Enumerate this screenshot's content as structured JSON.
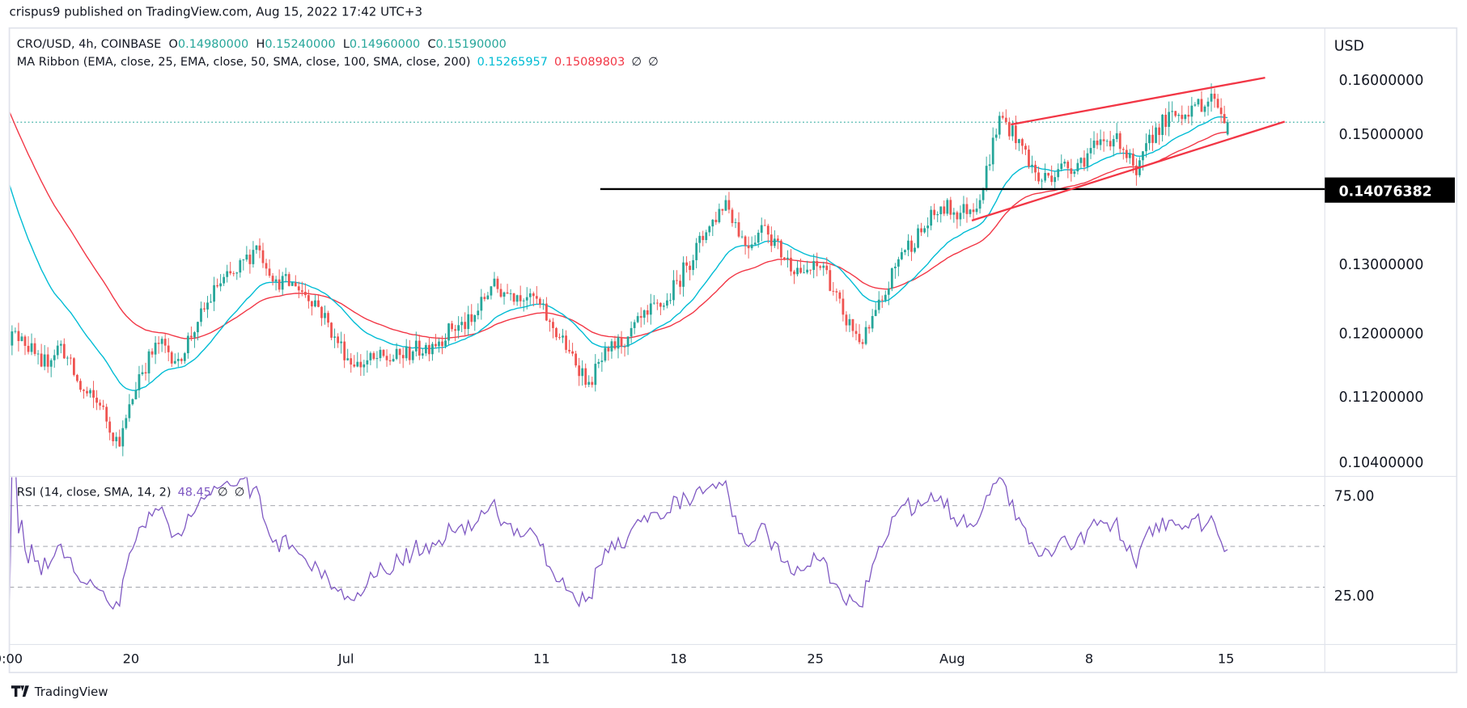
{
  "header": {
    "published": "crispus9 published on TradingView.com, Aug 15, 2022 17:42 UTC+3"
  },
  "legend": {
    "symbol": "CRO/USD, 4h, COINBASE",
    "o_label": "O",
    "o": "0.14980000",
    "h_label": "H",
    "h": "0.15240000",
    "l_label": "L",
    "l": "0.14960000",
    "c_label": "C",
    "c": "0.15190000",
    "ma_name": "MA Ribbon (EMA, close, 25, EMA, close, 50, SMA, close, 100, SMA, close, 200)",
    "ma_val1": "0.15265957",
    "ma_val2": "0.15089803",
    "ma_na1": "∅",
    "ma_na2": "∅",
    "rsi_name": "RSI (14, close, SMA, 14, 2)",
    "rsi_val": "48.45",
    "rsi_na1": "∅",
    "rsi_na2": "∅"
  },
  "footer": {
    "logo_text": "TradingView"
  },
  "colors": {
    "up": "#26a69a",
    "down": "#ef5350",
    "ema25": "#00bcd4",
    "ema50": "#f23645",
    "rsi": "#7e57c2",
    "channel": "#f23645",
    "support": "#000000",
    "last_price": "#26a69a"
  },
  "chart_data": [
    {
      "type": "candlestick",
      "title": "CRO/USD, 4h, COINBASE",
      "y_axis": {
        "unit": "USD",
        "scale": "log",
        "ticks": [
          "0.16000000",
          "0.15000000",
          "0.13000000",
          "0.12000000",
          "0.11200000",
          "0.10400000"
        ]
      },
      "x_axis": {
        "ticks": [
          {
            "label": "0:00",
            "date": "2022-06-14"
          },
          {
            "label": "20",
            "date": "2022-06-20"
          },
          {
            "label": "Jul",
            "date": "2022-07-01"
          },
          {
            "label": "11",
            "date": "2022-07-11"
          },
          {
            "label": "18",
            "date": "2022-07-18"
          },
          {
            "label": "25",
            "date": "2022-07-25"
          },
          {
            "label": "Aug",
            "date": "2022-08-01"
          },
          {
            "label": "8",
            "date": "2022-08-08"
          },
          {
            "label": "15",
            "date": "2022-08-15"
          }
        ]
      },
      "last_candle": {
        "open": 0.1498,
        "high": 0.1524,
        "low": 0.1496,
        "close": 0.1519
      },
      "daily_close": [
        [
          "2022-06-14",
          0.119
        ],
        [
          "2022-06-15",
          0.115
        ],
        [
          "2022-06-16",
          0.118
        ],
        [
          "2022-06-17",
          0.112
        ],
        [
          "2022-06-18",
          0.11
        ],
        [
          "2022-06-19",
          0.105
        ],
        [
          "2022-06-20",
          0.114
        ],
        [
          "2022-06-21",
          0.118
        ],
        [
          "2022-06-22",
          0.116
        ],
        [
          "2022-06-23",
          0.121
        ],
        [
          "2022-06-24",
          0.126
        ],
        [
          "2022-06-25",
          0.128
        ],
        [
          "2022-06-26",
          0.132
        ],
        [
          "2022-06-27",
          0.127
        ],
        [
          "2022-06-28",
          0.126
        ],
        [
          "2022-06-29",
          0.124
        ],
        [
          "2022-06-30",
          0.119
        ],
        [
          "2022-07-01",
          0.115
        ],
        [
          "2022-07-02",
          0.116
        ],
        [
          "2022-07-03",
          0.116
        ],
        [
          "2022-07-04",
          0.117
        ],
        [
          "2022-07-05",
          0.118
        ],
        [
          "2022-07-06",
          0.12
        ],
        [
          "2022-07-07",
          0.121
        ],
        [
          "2022-07-08",
          0.126
        ],
        [
          "2022-07-09",
          0.125
        ],
        [
          "2022-07-10",
          0.125
        ],
        [
          "2022-07-11",
          0.121
        ],
        [
          "2022-07-12",
          0.117
        ],
        [
          "2022-07-13",
          0.113
        ],
        [
          "2022-07-14",
          0.117
        ],
        [
          "2022-07-15",
          0.119
        ],
        [
          "2022-07-16",
          0.122
        ],
        [
          "2022-07-17",
          0.124
        ],
        [
          "2022-07-18",
          0.129
        ],
        [
          "2022-07-19",
          0.134
        ],
        [
          "2022-07-20",
          0.139
        ],
        [
          "2022-07-21",
          0.132
        ],
        [
          "2022-07-22",
          0.135
        ],
        [
          "2022-07-23",
          0.13
        ],
        [
          "2022-07-24",
          0.128
        ],
        [
          "2022-07-25",
          0.129
        ],
        [
          "2022-07-26",
          0.122
        ],
        [
          "2022-07-27",
          0.118
        ],
        [
          "2022-07-28",
          0.124
        ],
        [
          "2022-07-29",
          0.131
        ],
        [
          "2022-07-30",
          0.134
        ],
        [
          "2022-07-31",
          0.138
        ],
        [
          "2022-08-01",
          0.137
        ],
        [
          "2022-08-02",
          0.139
        ],
        [
          "2022-08-03",
          0.153
        ],
        [
          "2022-08-04",
          0.149
        ],
        [
          "2022-08-05",
          0.142
        ],
        [
          "2022-08-06",
          0.144
        ],
        [
          "2022-08-07",
          0.145
        ],
        [
          "2022-08-08",
          0.148
        ],
        [
          "2022-08-09",
          0.15
        ],
        [
          "2022-08-10",
          0.143
        ],
        [
          "2022-08-11",
          0.151
        ],
        [
          "2022-08-12",
          0.153
        ],
        [
          "2022-08-13",
          0.155
        ],
        [
          "2022-08-14",
          0.156
        ],
        [
          "2022-08-15",
          0.1519
        ]
      ],
      "ma_at_left_edge": {
        "ema25": 0.146,
        "ema50": 0.157
      },
      "support_line": {
        "value": "0.14076382",
        "from_date": "2022-07-14"
      },
      "channel": {
        "upper": [
          [
            "2022-08-04",
            0.1515
          ],
          [
            "2022-08-17",
            0.1598
          ]
        ],
        "lower": [
          [
            "2022-08-02",
            0.1358
          ],
          [
            "2022-08-18",
            0.152
          ]
        ]
      },
      "last_price_line": 0.1519
    },
    {
      "type": "line",
      "title": "RSI (14, close, SMA, 14, 2)",
      "y_axis": {
        "ticks": [
          "75.00",
          "25.00"
        ]
      },
      "bands": [
        70,
        50,
        30
      ],
      "last_value": 48.45
    }
  ]
}
